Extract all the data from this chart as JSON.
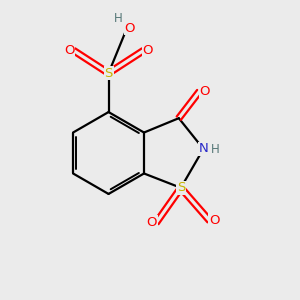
{
  "bg_color": "#ebebeb",
  "bond_color": "#000000",
  "atom_colors": {
    "S_ring": "#c8b400",
    "S_sulfonic": "#c8b400",
    "N": "#2828c8",
    "O_red": "#ff0000",
    "C": "#000000",
    "H": "#557777"
  },
  "figsize": [
    3.0,
    3.0
  ],
  "dpi": 100,
  "xlim": [
    0,
    10
  ],
  "ylim": [
    0,
    10
  ],
  "scale": 1.05,
  "ox": 4.8,
  "oy": 4.9
}
